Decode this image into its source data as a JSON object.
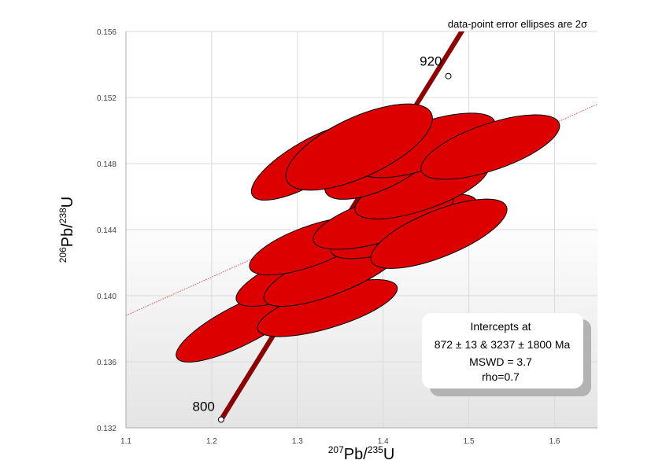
{
  "chart_data": {
    "type": "scatter",
    "plot_kind": "concordia",
    "xlabel": {
      "sup": "207",
      "main": "Pb/",
      "sup2": "235",
      "main2": "U"
    },
    "ylabel": {
      "sup": "206",
      "main": "Pb/",
      "sup2": "238",
      "main2": "U"
    },
    "xlim": [
      1.1,
      1.65
    ],
    "ylim": [
      0.132,
      0.156
    ],
    "x_ticks": [
      1.1,
      1.2,
      1.3,
      1.4,
      1.5,
      1.6
    ],
    "y_ticks": [
      0.132,
      0.136,
      0.14,
      0.144,
      0.148,
      0.152,
      0.156
    ],
    "x_tick_labels": [
      "1.1",
      "1.2",
      "1.3",
      "1.4",
      "1.5",
      "1.6"
    ],
    "y_tick_labels": [
      "0.132",
      "0.136",
      "0.140",
      "0.144",
      "0.148",
      "0.152",
      "0.156"
    ],
    "grid": true,
    "note": "data-point error ellipses are 2σ",
    "concordia": {
      "color": "#8b0000",
      "start": {
        "x": 1.211,
        "y": 0.1325
      },
      "end": {
        "x": 1.506,
        "y": 0.1572
      },
      "age_markers": [
        {
          "age": "800",
          "x": 1.211,
          "y": 0.1325
        },
        {
          "age": "920",
          "x": 1.476,
          "y": 0.1533
        }
      ]
    },
    "discordia": {
      "color": "#e05050",
      "points": [
        {
          "x": 1.1,
          "y": 0.1388
        },
        {
          "x": 1.65,
          "y": 0.1516
        }
      ]
    },
    "ellipse_color": "#dd0000",
    "ellipses": [
      {
        "cx": 1.235,
        "cy": 0.13825,
        "rx": 0.085,
        "ry": 0.0012,
        "angle": -27
      },
      {
        "cx": 1.335,
        "cy": 0.13925,
        "rx": 0.085,
        "ry": 0.0012,
        "angle": -17
      },
      {
        "cx": 1.305,
        "cy": 0.1413,
        "rx": 0.082,
        "ry": 0.0012,
        "angle": -22
      },
      {
        "cx": 1.343,
        "cy": 0.14145,
        "rx": 0.088,
        "ry": 0.0013,
        "angle": -22
      },
      {
        "cx": 1.315,
        "cy": 0.143,
        "rx": 0.075,
        "ry": 0.0012,
        "angle": -20
      },
      {
        "cx": 1.424,
        "cy": 0.1442,
        "rx": 0.09,
        "ry": 0.0013,
        "angle": -19
      },
      {
        "cx": 1.4,
        "cy": 0.1446,
        "rx": 0.085,
        "ry": 0.0013,
        "angle": -17
      },
      {
        "cx": 1.465,
        "cy": 0.14375,
        "rx": 0.085,
        "ry": 0.0014,
        "angle": -22
      },
      {
        "cx": 1.315,
        "cy": 0.1481,
        "rx": 0.078,
        "ry": 0.0013,
        "angle": -30
      },
      {
        "cx": 1.445,
        "cy": 0.1465,
        "rx": 0.082,
        "ry": 0.0013,
        "angle": -19
      },
      {
        "cx": 1.395,
        "cy": 0.1477,
        "rx": 0.068,
        "ry": 0.0013,
        "angle": -24
      },
      {
        "cx": 1.45,
        "cy": 0.1491,
        "rx": 0.085,
        "ry": 0.0014,
        "angle": -19
      },
      {
        "cx": 1.525,
        "cy": 0.149,
        "rx": 0.085,
        "ry": 0.0014,
        "angle": -19
      },
      {
        "cx": 1.372,
        "cy": 0.149,
        "rx": 0.093,
        "ry": 0.0018,
        "angle": -25
      }
    ],
    "results_box": {
      "line1": "Intercepts at",
      "line2": "872 ± 13 & 3237 ± 1800 Ma",
      "line3": "MSWD = 3.7",
      "line4": "rho=0.7"
    }
  }
}
